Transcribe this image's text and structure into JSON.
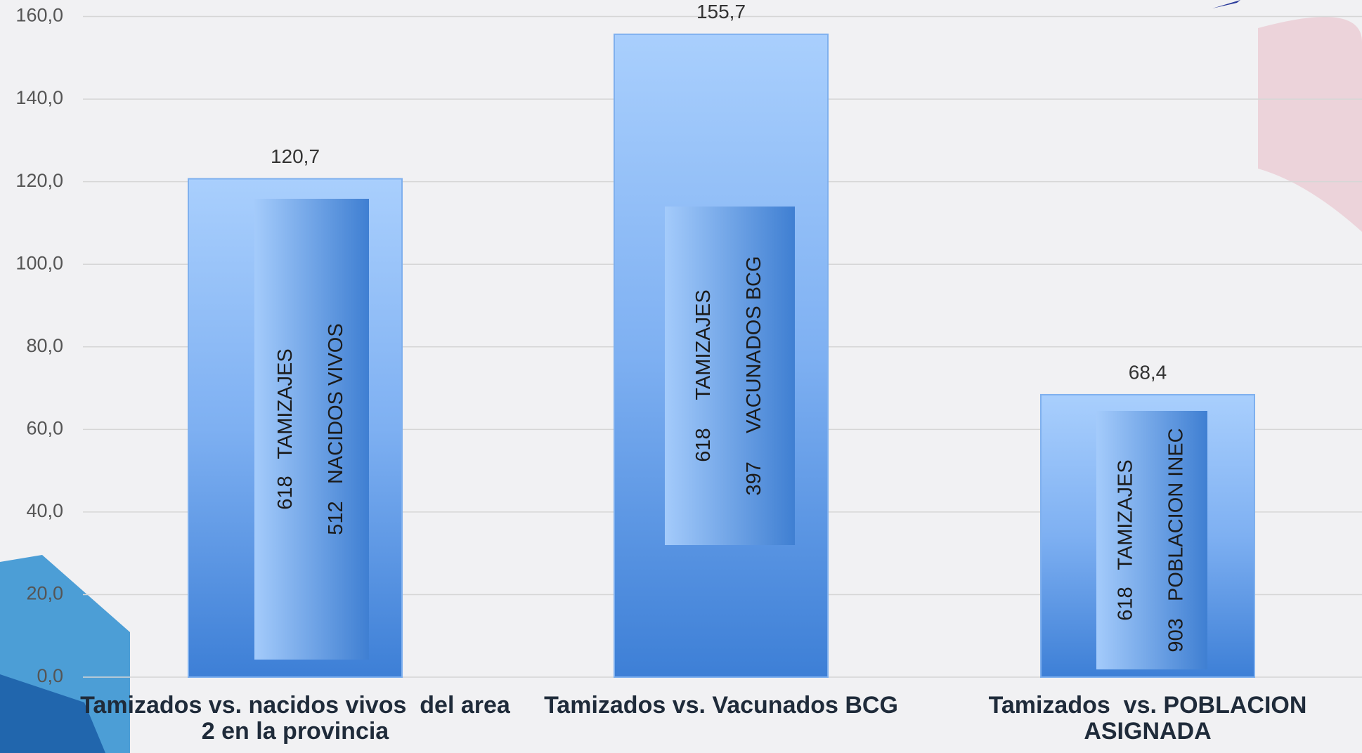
{
  "chart_data": {
    "type": "bar",
    "categories": [
      "Tamizados vs. nacidos vivos  del area 2 en la provincia",
      "Tamizados vs. Vacunados BCG",
      "Tamizados  vs. POBLACION ASIGNADA"
    ],
    "values": [
      120.7,
      155.7,
      68.4
    ],
    "value_labels": [
      "120,7",
      "155,7",
      "68,4"
    ],
    "annotations": [
      [
        "618   TAMIZAJES",
        "512   NACIDOS VIVOS"
      ],
      [
        "618     TAMIZAJES",
        "397     VACUNADOS BCG"
      ],
      [
        "618   TAMIZAJES",
        "903   POBLACION INEC"
      ]
    ],
    "color": "#5b95e6",
    "ylim": [
      0,
      160
    ],
    "yticks": [
      {
        "value": 0,
        "label": "0,0"
      },
      {
        "value": 20,
        "label": "20,0"
      },
      {
        "value": 40,
        "label": "40,0"
      },
      {
        "value": 60,
        "label": "60,0"
      },
      {
        "value": 80,
        "label": "80,0"
      },
      {
        "value": 100,
        "label": "100,0"
      },
      {
        "value": 120,
        "label": "120,0"
      },
      {
        "value": 140,
        "label": "140,0"
      },
      {
        "value": 160,
        "label": "160,0"
      }
    ],
    "grid": true
  }
}
